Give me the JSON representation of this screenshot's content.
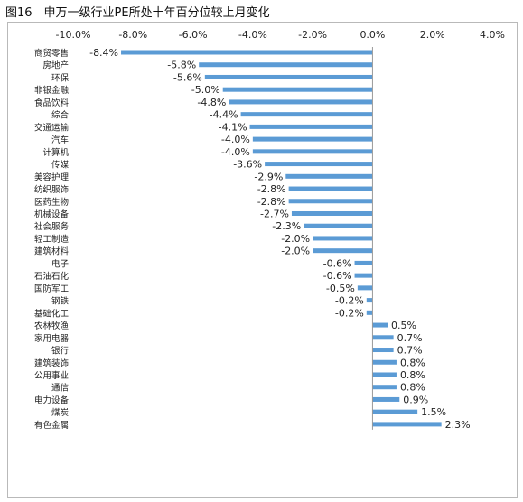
{
  "figure_title": "图16　申万一级行业PE所处十年百分位较上月变化",
  "colors": {
    "bar": "#5b9bd5",
    "text": "#222222",
    "axis": "#999999",
    "frame": "#b9b9b9"
  },
  "chart_data": {
    "type": "bar",
    "orientation": "horizontal",
    "title": "",
    "xlabel": "",
    "ylabel": "",
    "xlim": [
      -0.1,
      0.04
    ],
    "x_ticks": [
      -0.1,
      -0.08,
      -0.06,
      -0.04,
      -0.02,
      0.0,
      0.02,
      0.04
    ],
    "x_tick_labels": [
      "-10.0%",
      "-8.0%",
      "-6.0%",
      "-4.0%",
      "-2.0%",
      "0.0%",
      "2.0%",
      "4.0%"
    ],
    "x_axis_position": "top",
    "grid": false,
    "legend": "none",
    "categories": [
      "商贸零售",
      "房地产",
      "环保",
      "非银金融",
      "食品饮料",
      "综合",
      "交通运输",
      "汽车",
      "计算机",
      "传媒",
      "美容护理",
      "纺织服饰",
      "医药生物",
      "机械设备",
      "社会服务",
      "轻工制造",
      "建筑材料",
      "电子",
      "石油石化",
      "国防军工",
      "钢铁",
      "基础化工",
      "农林牧渔",
      "家用电器",
      "银行",
      "建筑装饰",
      "公用事业",
      "通信",
      "电力设备",
      "煤炭",
      "有色金属"
    ],
    "values": [
      -0.084,
      -0.058,
      -0.056,
      -0.05,
      -0.048,
      -0.044,
      -0.041,
      -0.04,
      -0.04,
      -0.036,
      -0.029,
      -0.028,
      -0.028,
      -0.027,
      -0.023,
      -0.02,
      -0.02,
      -0.006,
      -0.006,
      -0.005,
      -0.002,
      -0.002,
      0.005,
      0.007,
      0.007,
      0.008,
      0.008,
      0.008,
      0.009,
      0.015,
      0.023
    ],
    "data_labels": [
      "-8.4%",
      "-5.8%",
      "-5.6%",
      "-5.0%",
      "-4.8%",
      "-4.4%",
      "-4.1%",
      "-4.0%",
      "-4.0%",
      "-3.6%",
      "-2.9%",
      "-2.8%",
      "-2.8%",
      "-2.7%",
      "-2.3%",
      "-2.0%",
      "-2.0%",
      "-0.6%",
      "-0.6%",
      "-0.5%",
      "-0.2%",
      "-0.2%",
      "0.5%",
      "0.7%",
      "0.7%",
      "0.8%",
      "0.8%",
      "0.8%",
      "0.9%",
      "1.5%",
      "2.3%"
    ]
  }
}
